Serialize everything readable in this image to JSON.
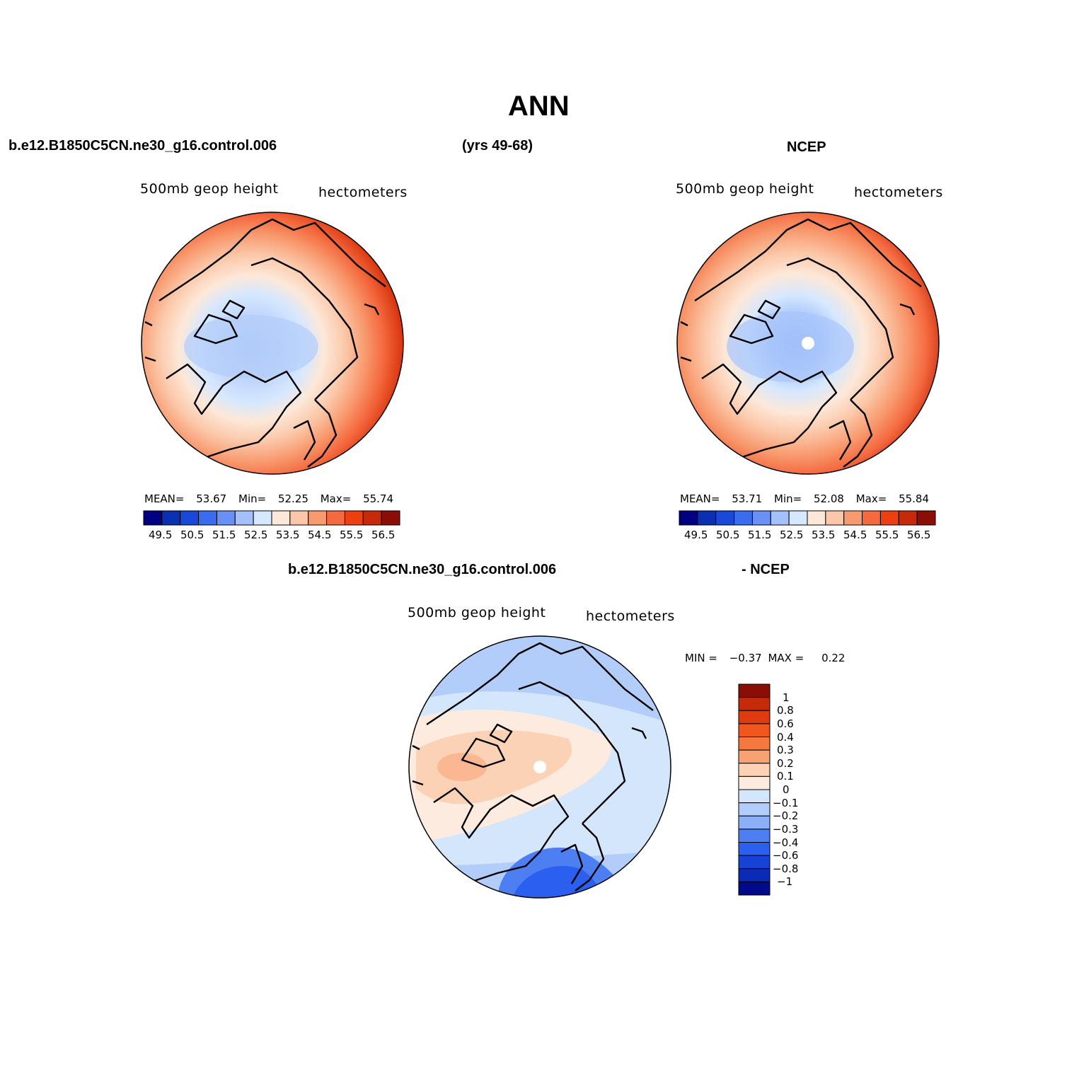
{
  "title": "ANN",
  "header": {
    "case_name": "b.e12.B1850C5CN.ne30_g16.control.006",
    "years": "(yrs 49-68)",
    "obs_name": "NCEP"
  },
  "diff_header": {
    "case_name": "b.e12.B1850C5CN.ne30_g16.control.006",
    "obs_name": "- NCEP"
  },
  "panels": {
    "model": {
      "variable": "500mb geop height",
      "units": "hectometers",
      "mean_label": "MEAN=",
      "mean": "53.67",
      "min_label": "Min=",
      "min": "52.25",
      "max_label": "Max=",
      "max": "55.74"
    },
    "obs": {
      "variable": "500mb geop height",
      "units": "hectometers",
      "mean_label": "MEAN=",
      "mean": "53.71",
      "min_label": "Min=",
      "min": "52.08",
      "max_label": "Max=",
      "max": "55.84"
    },
    "diff": {
      "variable": "500mb geop height",
      "units": "hectometers",
      "min_label": "MIN =",
      "min": "−0.37",
      "max_label": "MAX =",
      "max": "0.22"
    }
  },
  "colorbars": {
    "abs_colors": [
      "#000080",
      "#0a2fb0",
      "#1a48d8",
      "#3a6cf0",
      "#6990f5",
      "#a4c0fa",
      "#d6e8ff",
      "#fde8d8",
      "#fbc7a8",
      "#f89a6f",
      "#f5693f",
      "#ec3f12",
      "#c52a0a",
      "#8a0d06"
    ],
    "abs_ticks": [
      "49.5",
      "50.5",
      "51.5",
      "52.5",
      "53.5",
      "54.5",
      "55.5",
      "56.5"
    ],
    "diff_colors": [
      "#8a0d06",
      "#c52a0a",
      "#e03a0e",
      "#f2561f",
      "#f5793f",
      "#f8a173",
      "#fcd2b6",
      "#fdebe0",
      "#d4e6fc",
      "#b3cdfa",
      "#8cb0f7",
      "#4d7ff2",
      "#2a5ff0",
      "#1642d6",
      "#0b2ab8",
      "#000a8a"
    ],
    "diff_labels": [
      "1",
      "0.8",
      "0.6",
      "0.4",
      "0.3",
      "0.2",
      "0.1",
      "0",
      "−0.1",
      "−0.2",
      "−0.3",
      "−0.4",
      "−0.6",
      "−0.8",
      "−1"
    ]
  },
  "chart_data": [
    {
      "type": "heatmap",
      "projection": "north polar stereographic",
      "title": "500mb geop height",
      "units": "hectometers",
      "case": "b.e12.B1850C5CN.ne30_g16.control.006",
      "levels": [
        49.5,
        50,
        50.5,
        51,
        51.5,
        52,
        52.5,
        53,
        53.5,
        54,
        54.5,
        55,
        55.5,
        56,
        56.5
      ],
      "mean": 53.67,
      "min": 52.25,
      "max": 55.74
    },
    {
      "type": "heatmap",
      "projection": "north polar stereographic",
      "title": "500mb geop height",
      "units": "hectometers",
      "case": "NCEP",
      "levels": [
        49.5,
        50,
        50.5,
        51,
        51.5,
        52,
        52.5,
        53,
        53.5,
        54,
        54.5,
        55,
        55.5,
        56,
        56.5
      ],
      "mean": 53.71,
      "min": 52.08,
      "max": 55.84
    },
    {
      "type": "heatmap",
      "projection": "north polar stereographic",
      "title": "500mb geop height",
      "units": "hectometers",
      "case": "b.e12.B1850C5CN.ne30_g16.control.006 - NCEP",
      "levels": [
        -1,
        -0.8,
        -0.6,
        -0.4,
        -0.3,
        -0.2,
        -0.1,
        0,
        0.1,
        0.2,
        0.3,
        0.4,
        0.6,
        0.8,
        1
      ],
      "min": -0.37,
      "max": 0.22
    }
  ]
}
